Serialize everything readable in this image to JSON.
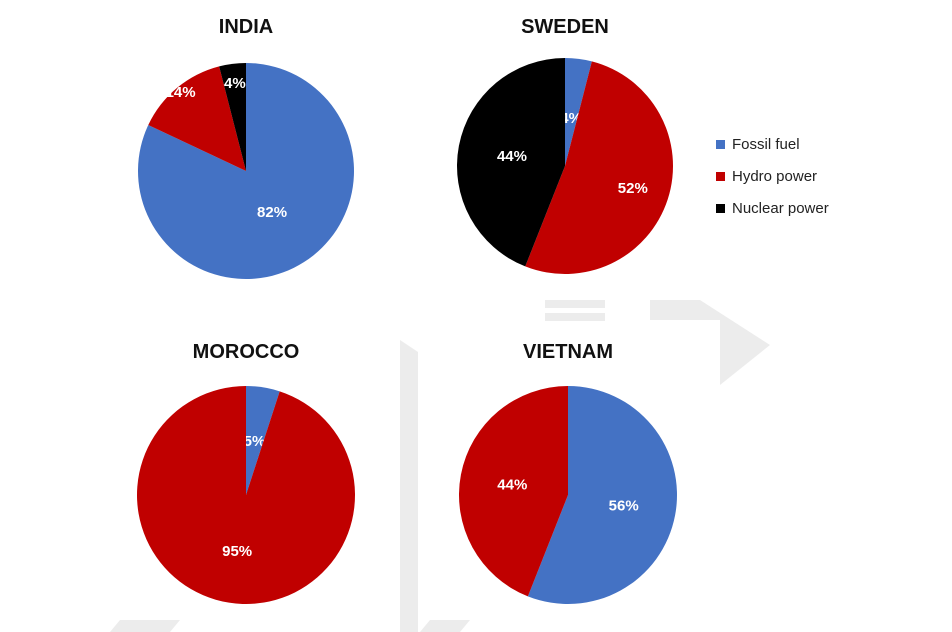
{
  "chart_data": {
    "type": "pie",
    "legend_position": "right",
    "legend": [
      {
        "name": "Fossil fuel",
        "color": "#4472C4"
      },
      {
        "name": "Hydro power",
        "color": "#C00000"
      },
      {
        "name": "Nuclear power",
        "color": "#000000"
      }
    ],
    "pies": [
      {
        "title": "INDIA",
        "slices": [
          {
            "name": "Fossil fuel",
            "value": 82,
            "label": "82%"
          },
          {
            "name": "Hydro power",
            "value": 14,
            "label": "14%"
          },
          {
            "name": "Nuclear power",
            "value": 4,
            "label": "4%"
          }
        ]
      },
      {
        "title": "SWEDEN",
        "slices": [
          {
            "name": "Fossil fuel",
            "value": 4,
            "label": "4%"
          },
          {
            "name": "Hydro power",
            "value": 52,
            "label": "52%"
          },
          {
            "name": "Nuclear power",
            "value": 44,
            "label": "44%"
          }
        ]
      },
      {
        "title": "MOROCCO",
        "slices": [
          {
            "name": "Fossil fuel",
            "value": 5,
            "label": "5%"
          },
          {
            "name": "Hydro power",
            "value": 95,
            "label": "95%"
          }
        ]
      },
      {
        "title": "VIETNAM",
        "slices": [
          {
            "name": "Fossil fuel",
            "value": 56,
            "label": "56%"
          },
          {
            "name": "Hydro power",
            "value": 44,
            "label": "44%"
          }
        ]
      }
    ]
  }
}
